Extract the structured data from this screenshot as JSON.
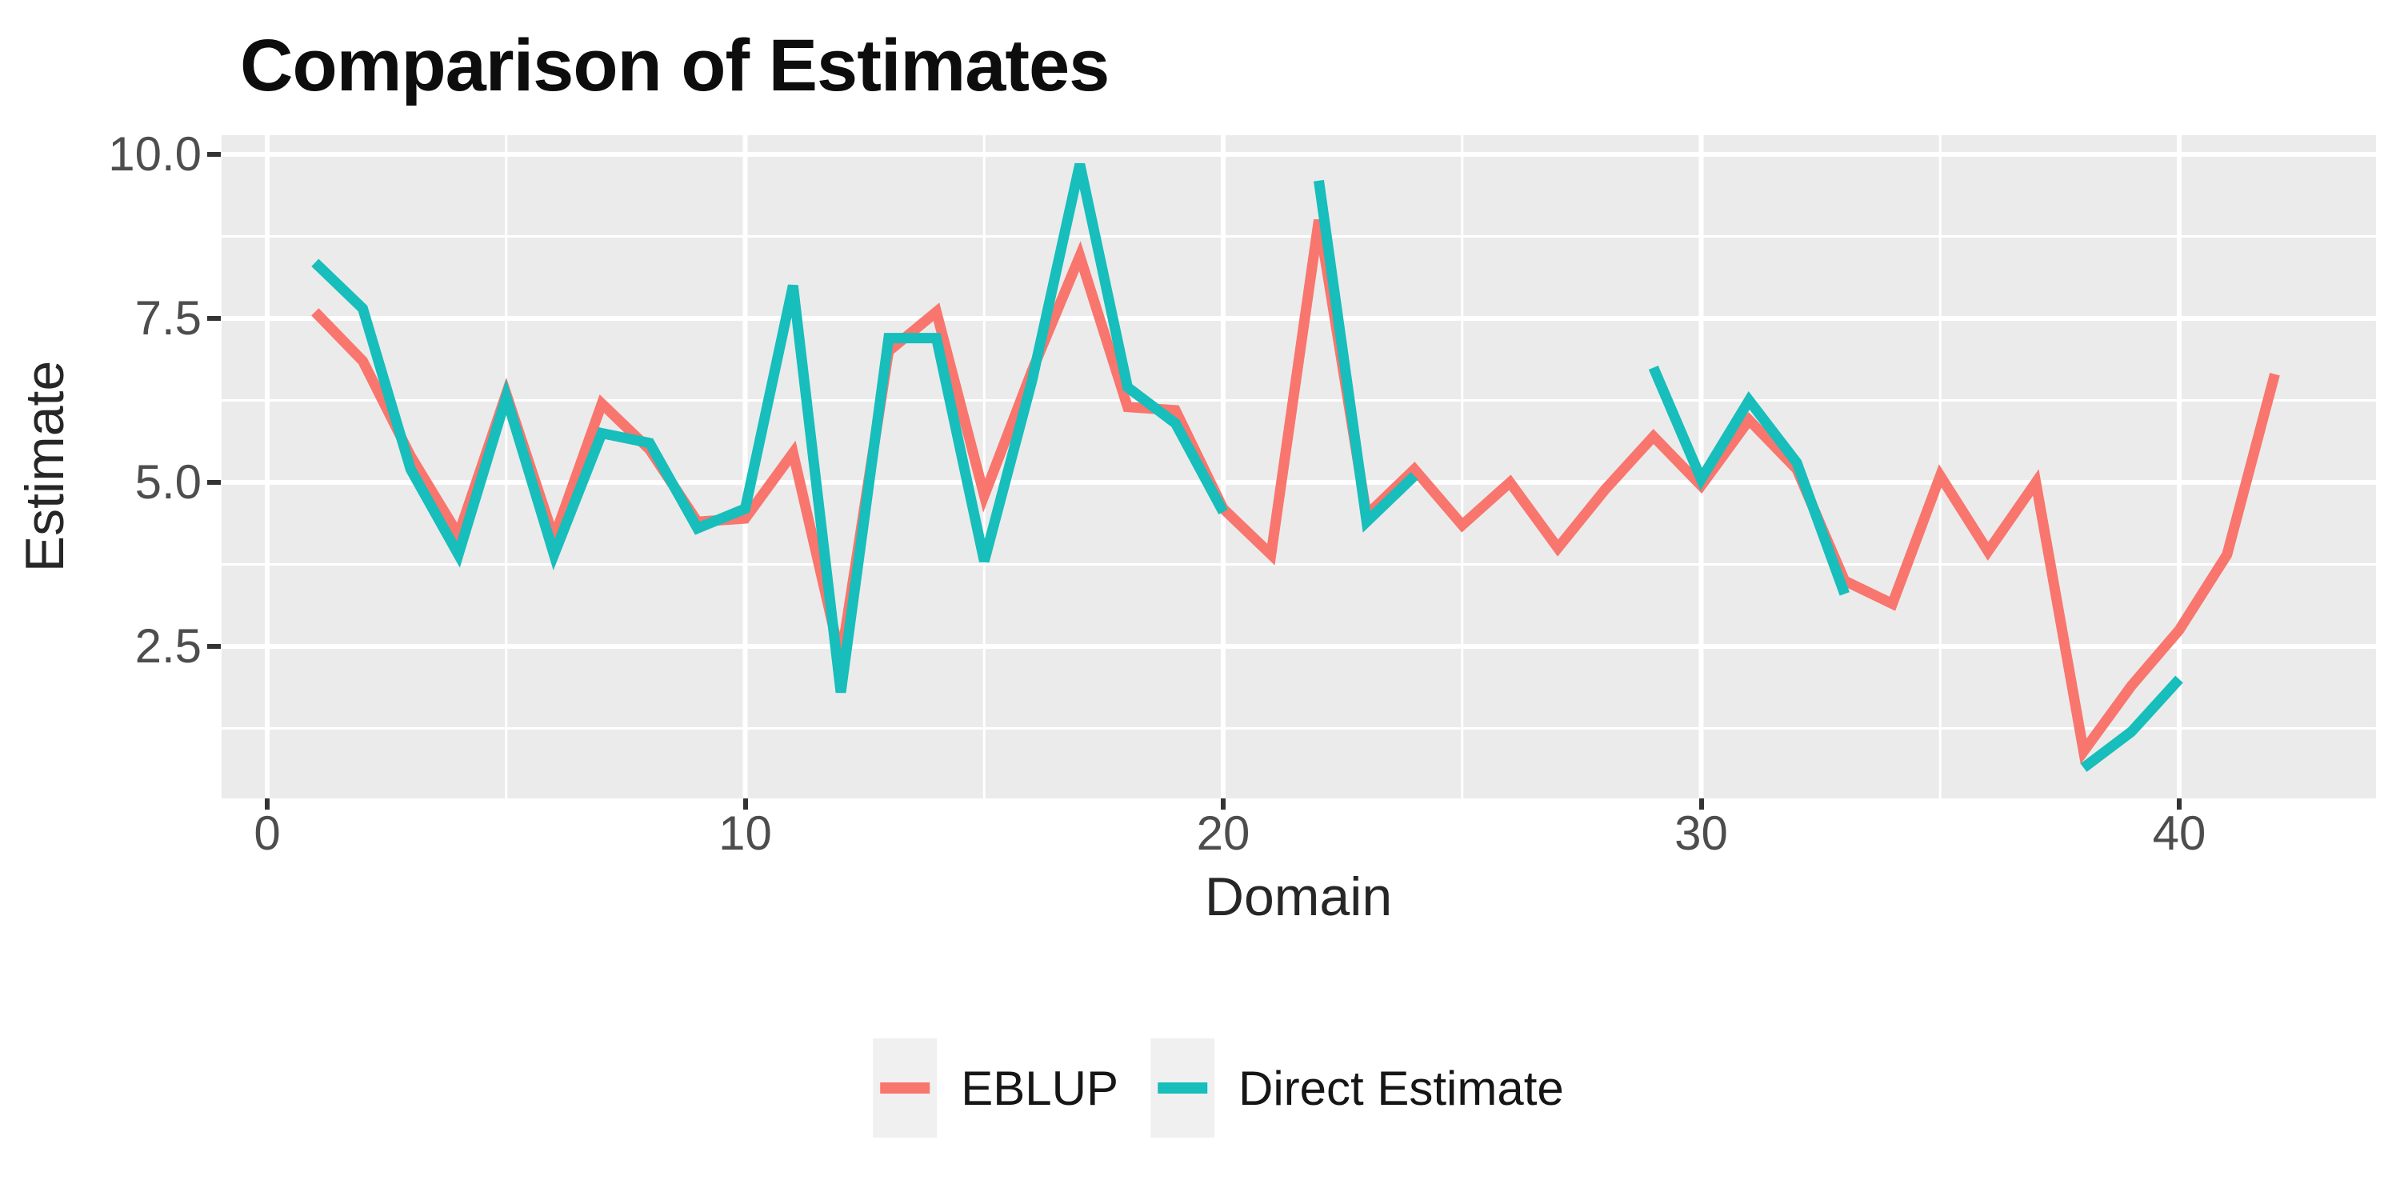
{
  "title": "Comparison of Estimates",
  "axes": {
    "x_label": "Domain",
    "y_label": "Estimate",
    "x_ticks": [
      {
        "label": "0",
        "value": 0
      },
      {
        "label": "10",
        "value": 10
      },
      {
        "label": "20",
        "value": 20
      },
      {
        "label": "30",
        "value": 30
      },
      {
        "label": "40",
        "value": 40
      }
    ],
    "y_ticks": [
      {
        "label": "10.0",
        "value": 10.0
      },
      {
        "label": "7.5",
        "value": 7.5
      },
      {
        "label": "5.0",
        "value": 5.0
      },
      {
        "label": "2.5",
        "value": 2.5
      }
    ]
  },
  "legend": {
    "position": "bottom",
    "items": [
      {
        "label": "EBLUP",
        "color": "#F8766D"
      },
      {
        "label": "Direct Estimate",
        "color": "#17BEBB"
      }
    ]
  },
  "style": {
    "panel_background": "#EBEBEB",
    "gridline_color": "#FFFFFF",
    "eblup_color": "#F8766D",
    "direct_color": "#17BEBB",
    "tick_text_color": "#4d4d4d"
  },
  "chart_data": {
    "type": "line",
    "title": "Comparison of Estimates",
    "xlabel": "Domain",
    "ylabel": "Estimate",
    "xlim": [
      -1,
      44
    ],
    "ylim": [
      0.2,
      10.3
    ],
    "x_major_gridlines": [
      0,
      10,
      20,
      30,
      40
    ],
    "x_minor_gridlines": [
      5,
      15,
      25,
      35
    ],
    "y_major_gridlines": [
      2.5,
      5.0,
      7.5,
      10.0
    ],
    "y_minor_gridlines": [
      1.25,
      3.75,
      6.25,
      8.75
    ],
    "grid": "white gridlines on gray panel",
    "legend_position": "bottom",
    "x": [
      1,
      2,
      3,
      4,
      5,
      6,
      7,
      8,
      9,
      10,
      11,
      12,
      13,
      14,
      15,
      16,
      17,
      18,
      19,
      20,
      21,
      22,
      23,
      24,
      25,
      26,
      27,
      28,
      29,
      30,
      31,
      32,
      33,
      34,
      35,
      36,
      37,
      38,
      39,
      40,
      41,
      42
    ],
    "series": [
      {
        "name": "EBLUP",
        "color": "#F8766D",
        "values": [
          7.6,
          6.85,
          5.4,
          4.2,
          6.35,
          4.15,
          6.2,
          5.5,
          4.4,
          4.45,
          5.45,
          2.3,
          7.0,
          7.6,
          4.8,
          6.7,
          8.45,
          6.15,
          6.1,
          4.6,
          3.9,
          9.0,
          4.5,
          5.2,
          4.35,
          5.0,
          4.0,
          4.9,
          5.7,
          4.95,
          5.95,
          5.2,
          3.5,
          3.15,
          5.1,
          3.95,
          5.0,
          0.9,
          1.9,
          2.75,
          3.9,
          6.65
        ]
      },
      {
        "name": "Direct Estimate",
        "color": "#17BEBB",
        "values": [
          8.35,
          7.65,
          5.2,
          3.9,
          6.3,
          3.9,
          5.75,
          5.6,
          4.3,
          4.6,
          8.0,
          1.8,
          7.2,
          7.2,
          3.8,
          6.55,
          9.85,
          6.45,
          5.9,
          4.55,
          null,
          9.6,
          4.4,
          5.1,
          null,
          null,
          null,
          null,
          6.75,
          5.05,
          6.25,
          5.3,
          3.3,
          null,
          null,
          null,
          null,
          0.65,
          1.2,
          2.0,
          null,
          null
        ]
      }
    ]
  }
}
